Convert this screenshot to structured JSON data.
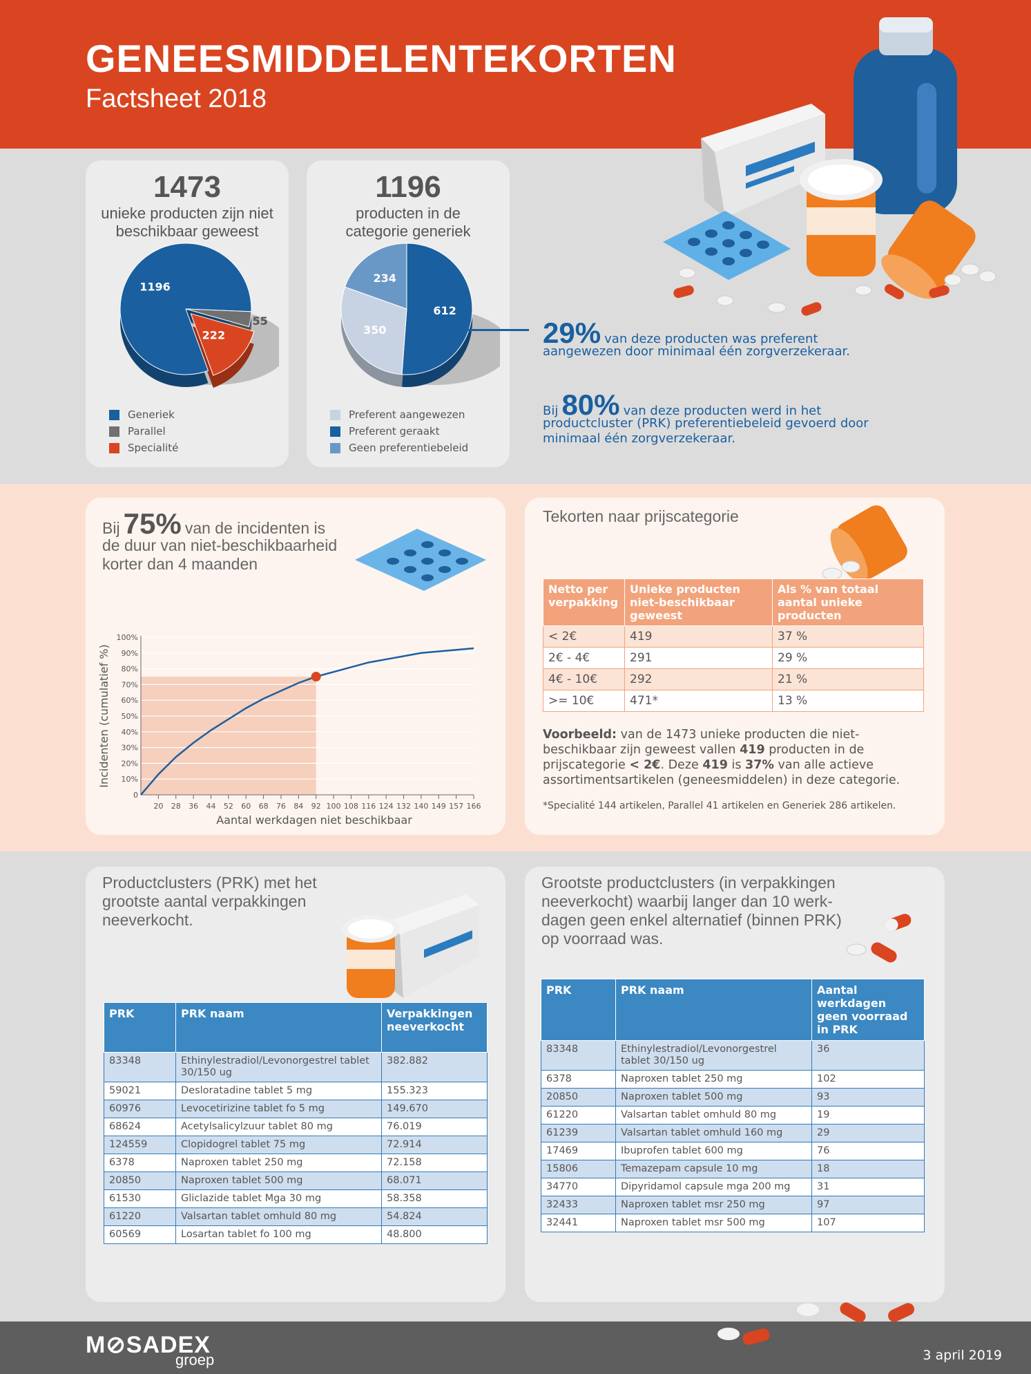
{
  "header": {
    "title": "GENEESMIDDELENTEKORTEN",
    "subtitle": "Factsheet 2018"
  },
  "colors": {
    "header_red": "#d94520",
    "blue_dark": "#1a5fa0",
    "blue_mid": "#6a98c6",
    "blue_light": "#c7d3e3",
    "grey": "#707070",
    "orange_red": "#d94520",
    "table_blue": "#3b88c2",
    "table_orange": "#f2a37c"
  },
  "card1": {
    "number": "1473",
    "desc_line1": "unieke producten zijn niet",
    "desc_line2": "beschikbaar geweest",
    "legend": [
      "Generiek",
      "Parallel",
      "Specialité"
    ]
  },
  "card2": {
    "number": "1196",
    "desc_line1": "producten in de",
    "desc_line2": "categorie generiek",
    "legend": [
      "Preferent aangewezen",
      "Preferent geraakt",
      "Geen preferentiebeleid"
    ]
  },
  "facts": {
    "fact1_pct": "29%",
    "fact1_line1": "van deze producten was preferent",
    "fact1_line2": "aangewezen door minimaal één zorgverzekeraar.",
    "fact2_prefix": "Bij",
    "fact2_pct": "80%",
    "fact2_line1": "van deze producten werd in het",
    "fact2_line2": "productcluster (PRK) preferentiebeleid gevoerd door",
    "fact2_line3": "minimaal één zorgverzekeraar."
  },
  "incidents": {
    "prefix": "Bij",
    "pct": "75%",
    "line1": "van de incidenten is",
    "line2": "de duur van niet-beschikbaarheid",
    "line3": "korter dan 4 maanden"
  },
  "chart_data": [
    {
      "type": "pie",
      "values": [
        1196,
        55,
        222
      ],
      "labels": [
        "1196",
        "55",
        "222"
      ],
      "legend": [
        "Generiek",
        "Parallel",
        "Specialité"
      ],
      "colors": [
        "#1a5fa0",
        "#707070",
        "#d94520"
      ]
    },
    {
      "type": "pie",
      "values": [
        612,
        350,
        234
      ],
      "labels": [
        "612",
        "350",
        "234"
      ],
      "legend": [
        "Preferent geraakt",
        "Preferent aangewezen",
        "Geen preferentiebeleid"
      ],
      "colors": [
        "#1a5fa0",
        "#c7d3e3",
        "#6a98c6"
      ]
    },
    {
      "type": "line",
      "xlabel": "Aantal werkdagen niet beschikbaar",
      "ylabel": "Incidenten (cumulatief %)",
      "x_ticks": [
        "20",
        "28",
        "36",
        "44",
        "52",
        "60",
        "68",
        "76",
        "84",
        "92",
        "100",
        "108",
        "116",
        "124",
        "132",
        "140",
        "149",
        "157",
        "166"
      ],
      "y_ticks": [
        "0",
        "10%",
        "20%",
        "30%",
        "40%",
        "50%",
        "60%",
        "70%",
        "80%",
        "90%",
        "100%"
      ],
      "ylim": [
        0,
        100
      ],
      "x": [
        0,
        1,
        2,
        3,
        4,
        5,
        6,
        7,
        8,
        9,
        10,
        11,
        12,
        13,
        14,
        15,
        16,
        17,
        18,
        19
      ],
      "y": [
        0,
        13,
        24,
        33,
        41,
        48,
        55,
        61,
        66,
        71,
        75,
        78,
        81,
        84,
        86,
        88,
        90,
        91,
        92,
        93
      ],
      "highlight_point": {
        "x": 10,
        "y": 75
      }
    }
  ],
  "price": {
    "heading": "Tekorten naar prijscategorie",
    "headers": [
      "Netto per verpakking",
      "Unieke producten niet-beschikbaar geweest",
      "Als % van totaal aantal unieke producten"
    ],
    "rows": [
      [
        "< 2€",
        "419",
        "37 %"
      ],
      [
        "2€ - 4€",
        "291",
        "29 %"
      ],
      [
        "4€ - 10€",
        "292",
        "21 %"
      ],
      [
        ">= 10€",
        "471*",
        "13 %"
      ]
    ],
    "example_bold": "Voorbeeld:",
    "example_1": "van de 1473 unieke producten die niet-",
    "example_2a": "beschikbaar zijn geweest vallen",
    "example_2b": "419",
    "example_2c": "producten in de",
    "example_3a": "prijscategorie",
    "example_3b": "< 2€",
    "example_3c": ". Deze",
    "example_3d": "419",
    "example_3e": "is",
    "example_3f": "37%",
    "example_3g": "van alle actieve",
    "example_4": "assortimentsartikelen (geneesmiddelen) in deze categorie.",
    "footnote": "*Specialité 144 artikelen, Parallel 41 artikelen en Generiek 286 artikelen."
  },
  "prk_left": {
    "heading_1": "Productclusters (PRK) met het",
    "heading_2": "grootste aantal verpakkingen",
    "heading_3": "neeverkocht.",
    "headers": [
      "PRK",
      "PRK naam",
      "Verpakkingen neeverkocht"
    ],
    "rows": [
      [
        "83348",
        "Ethinylestradiol/Levonorgestrel tablet 30/150 ug",
        "382.882"
      ],
      [
        "59021",
        "Desloratadine tablet 5 mg",
        "155.323"
      ],
      [
        "60976",
        "Levocetirizine tablet fo 5 mg",
        "149.670"
      ],
      [
        "68624",
        "Acetylsalicylzuur tablet 80 mg",
        "76.019"
      ],
      [
        "124559",
        "Clopidogrel tablet 75 mg",
        "72.914"
      ],
      [
        "6378",
        "Naproxen tablet 250 mg",
        "72.158"
      ],
      [
        "20850",
        "Naproxen tablet 500 mg",
        "68.071"
      ],
      [
        "61530",
        "Gliclazide tablet Mga 30 mg",
        "58.358"
      ],
      [
        "61220",
        "Valsartan tablet omhuld 80 mg",
        "54.824"
      ],
      [
        "60569",
        "Losartan tablet fo 100 mg",
        "48.800"
      ]
    ]
  },
  "prk_right": {
    "heading_1": "Grootste productclusters (in verpakkingen",
    "heading_2": "neeverkocht) waarbij langer dan 10 werk-",
    "heading_3": "dagen geen enkel alternatief (binnen PRK)",
    "heading_4": "op voorraad was.",
    "headers": [
      "PRK",
      "PRK naam",
      "Aantal werkdagen geen voorraad in PRK"
    ],
    "rows": [
      [
        "83348",
        "Ethinylestradiol/Levonorgestrel tablet 30/150 ug",
        "36"
      ],
      [
        "6378",
        "Naproxen tablet 250 mg",
        "102"
      ],
      [
        "20850",
        "Naproxen tablet 500 mg",
        "93"
      ],
      [
        "61220",
        "Valsartan tablet omhuld 80 mg",
        "19"
      ],
      [
        "61239",
        "Valsartan tablet omhuld 160 mg",
        "29"
      ],
      [
        "17469",
        "Ibuprofen tablet 600 mg",
        "76"
      ],
      [
        "15806",
        "Temazepam capsule 10 mg",
        "18"
      ],
      [
        "34770",
        "Dipyridamol capsule mga 200 mg",
        "31"
      ],
      [
        "32433",
        "Naproxen tablet msr 250 mg",
        "97"
      ],
      [
        "32441",
        "Naproxen tablet msr 500 mg",
        "107"
      ]
    ]
  },
  "footer": {
    "logo": "M⊘SADEX",
    "logo_sub": "groep",
    "date": "3 april 2019"
  }
}
